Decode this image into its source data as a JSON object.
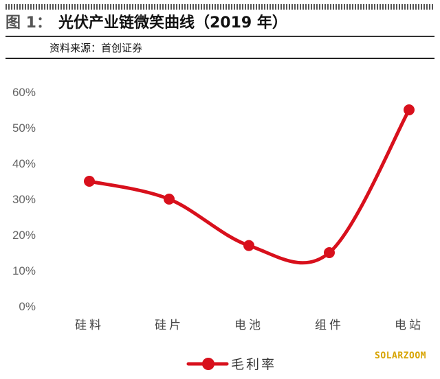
{
  "figure": {
    "label": "图 1：",
    "title": "光伏产业链微笑曲线（2019 年）",
    "source": "资料来源：首创证券"
  },
  "watermark": "SOLARZOOM",
  "colors": {
    "line": "#d8101c",
    "axis_text": "#666666",
    "accent": "#d7a300"
  },
  "chart_data": {
    "type": "line",
    "categories": [
      "硅料",
      "硅片",
      "电池",
      "组件",
      "电站"
    ],
    "series": [
      {
        "name": "毛利率",
        "values": [
          35,
          30,
          17,
          15,
          55
        ],
        "unit": "%"
      }
    ],
    "ylim": [
      0,
      60
    ],
    "yticks": [
      "0%",
      "10%",
      "20%",
      "30%",
      "40%",
      "50%",
      "60%"
    ],
    "title": "",
    "xlabel": "",
    "ylabel": "",
    "grid": false,
    "smooth": true,
    "legend": "bottom-center"
  }
}
